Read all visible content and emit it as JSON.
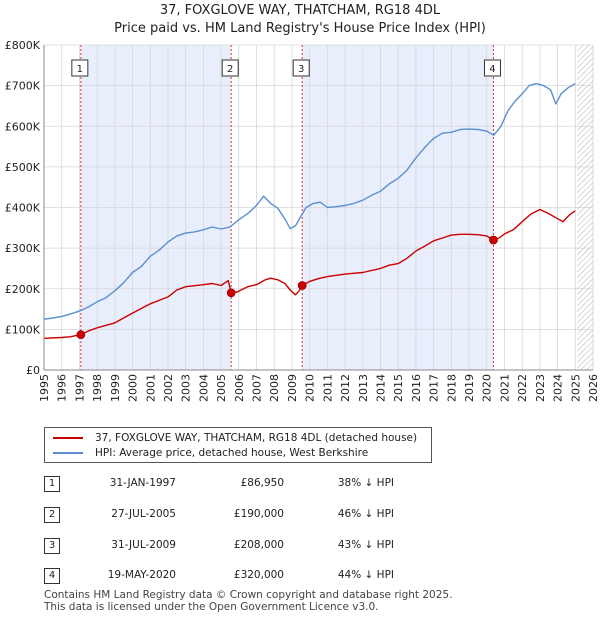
{
  "chart_data": {
    "type": "line",
    "title": "37, FOXGLOVE WAY, THATCHAM, RG18 4DL",
    "subtitle": "Price paid vs. HM Land Registry's House Price Index (HPI)",
    "xlim": [
      1995,
      2026
    ],
    "ylim": [
      0,
      800000
    ],
    "y_ticks": [
      0,
      100000,
      200000,
      300000,
      400000,
      500000,
      600000,
      700000,
      800000
    ],
    "y_tick_labels": [
      "£0",
      "£100K",
      "£200K",
      "£300K",
      "£400K",
      "£500K",
      "£600K",
      "£700K",
      "£800K"
    ],
    "x_ticks": [
      1995,
      1996,
      1997,
      1998,
      1999,
      2000,
      2001,
      2002,
      2003,
      2004,
      2005,
      2006,
      2007,
      2008,
      2009,
      2010,
      2011,
      2012,
      2013,
      2014,
      2015,
      2016,
      2017,
      2018,
      2019,
      2020,
      2021,
      2022,
      2023,
      2024,
      2025,
      2026
    ],
    "x_tick_labels": [
      "1995",
      "1996",
      "1997",
      "1998",
      "1999",
      "2000",
      "2001",
      "2002",
      "2003",
      "2004",
      "2005",
      "2006",
      "2007",
      "2008",
      "2009",
      "2010",
      "2011",
      "2012",
      "2013",
      "2014",
      "2015",
      "2016",
      "2017",
      "2018",
      "2019",
      "2020",
      "2021",
      "2022",
      "2023",
      "2024",
      "2025",
      "2026"
    ],
    "grid": true,
    "future_hatch_from": 2025.1,
    "series": [
      {
        "name": "37, FOXGLOVE WAY, THATCHAM, RG18 4DL (detached house)",
        "color": "#cc0000",
        "x": [
          1995.0,
          1996.0,
          1996.5,
          1997.08,
          1997.5,
          1998.0,
          1999.0,
          2000.0,
          2001.0,
          2002.0,
          2002.5,
          2003.0,
          2004.0,
          2004.5,
          2005.0,
          2005.4,
          2005.57,
          2005.9,
          2006.5,
          2007.0,
          2007.5,
          2007.8,
          2008.2,
          2008.6,
          2008.9,
          2009.2,
          2009.4,
          2009.58,
          2010.0,
          2010.5,
          2011.0,
          2012.0,
          2013.0,
          2014.0,
          2014.5,
          2015.0,
          2015.5,
          2016.0,
          2016.5,
          2017.0,
          2017.5,
          2018.0,
          2018.5,
          2019.0,
          2019.5,
          2020.0,
          2020.38,
          2020.7,
          2021.0,
          2021.5,
          2022.0,
          2022.5,
          2023.0,
          2023.5,
          2023.9,
          2024.3,
          2024.7,
          2025.0
        ],
        "y": [
          78000,
          80000,
          82000,
          86950,
          96000,
          104000,
          116000,
          140000,
          163000,
          180000,
          197000,
          205000,
          210000,
          213000,
          208000,
          220000,
          190000,
          192000,
          205000,
          210000,
          222000,
          226000,
          222000,
          213000,
          197000,
          185000,
          195000,
          208000,
          218000,
          225000,
          230000,
          236000,
          240000,
          250000,
          258000,
          262000,
          275000,
          293000,
          305000,
          318000,
          325000,
          332000,
          334000,
          334000,
          333000,
          330000,
          320000,
          325000,
          335000,
          345000,
          365000,
          384000,
          395000,
          385000,
          375000,
          365000,
          383000,
          392000
        ]
      },
      {
        "name": "HPI: Average price, detached house, West Berkshire",
        "color": "#5b8fd1",
        "x": [
          1995.0,
          1995.5,
          1996.0,
          1996.5,
          1997.0,
          1997.5,
          1998.0,
          1998.5,
          1999.0,
          1999.5,
          2000.0,
          2000.5,
          2001.0,
          2001.5,
          2002.0,
          2002.5,
          2003.0,
          2003.5,
          2004.0,
          2004.5,
          2005.0,
          2005.5,
          2006.0,
          2006.5,
          2007.0,
          2007.4,
          2007.8,
          2008.2,
          2008.6,
          2008.9,
          2009.2,
          2009.5,
          2009.8,
          2010.2,
          2010.6,
          2011.0,
          2011.5,
          2012.0,
          2012.5,
          2013.0,
          2013.5,
          2014.0,
          2014.5,
          2015.0,
          2015.5,
          2016.0,
          2016.5,
          2017.0,
          2017.5,
          2018.0,
          2018.5,
          2019.0,
          2019.5,
          2020.0,
          2020.4,
          2020.8,
          2021.2,
          2021.6,
          2022.0,
          2022.4,
          2022.8,
          2023.2,
          2023.6,
          2023.9,
          2024.2,
          2024.6,
          2025.0
        ],
        "y": [
          125000,
          128000,
          132000,
          138000,
          145000,
          155000,
          168000,
          178000,
          195000,
          215000,
          240000,
          255000,
          280000,
          295000,
          315000,
          330000,
          337000,
          340000,
          345000,
          352000,
          347000,
          352000,
          370000,
          385000,
          405000,
          428000,
          410000,
          398000,
          372000,
          348000,
          355000,
          378000,
          400000,
          410000,
          413000,
          400000,
          402000,
          405000,
          410000,
          418000,
          430000,
          440000,
          458000,
          472000,
          492000,
          522000,
          548000,
          570000,
          583000,
          585000,
          592000,
          593000,
          592000,
          588000,
          578000,
          600000,
          638000,
          662000,
          680000,
          700000,
          705000,
          700000,
          690000,
          655000,
          680000,
          695000,
          705000
        ]
      }
    ],
    "sales": [
      {
        "label": "1",
        "x": 1997.08,
        "y": 86950
      },
      {
        "label": "2",
        "x": 2005.57,
        "y": 190000
      },
      {
        "label": "3",
        "x": 2009.58,
        "y": 208000
      },
      {
        "label": "4",
        "x": 2020.38,
        "y": 320000
      }
    ]
  },
  "legend": {
    "property_label": "37, FOXGLOVE WAY, THATCHAM, RG18 4DL (detached house)",
    "hpi_label": "HPI: Average price, detached house, West Berkshire"
  },
  "table": {
    "rows": [
      {
        "num": "1",
        "date": "31-JAN-1997",
        "price": "£86,950",
        "hpi": "38% ↓ HPI"
      },
      {
        "num": "2",
        "date": "27-JUL-2005",
        "price": "£190,000",
        "hpi": "46% ↓ HPI"
      },
      {
        "num": "3",
        "date": "31-JUL-2009",
        "price": "£208,000",
        "hpi": "43% ↓ HPI"
      },
      {
        "num": "4",
        "date": "19-MAY-2020",
        "price": "£320,000",
        "hpi": "44% ↓ HPI"
      }
    ]
  },
  "footer": {
    "line1": "Contains HM Land Registry data © Crown copyright and database right 2025.",
    "line2": "This data is licensed under the Open Government Licence v3.0."
  }
}
